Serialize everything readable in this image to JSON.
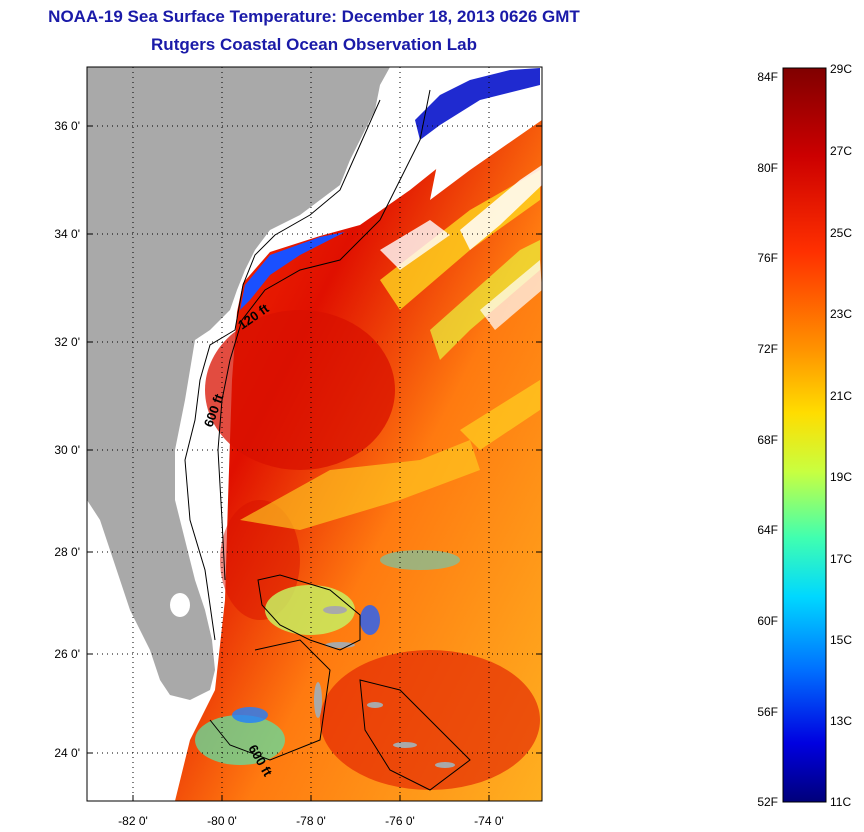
{
  "title": "NOAA-19 Sea Surface Temperature:  December 18, 2013 0626 GMT",
  "subtitle": "Rutgers Coastal Ocean Observation Lab",
  "map": {
    "lon_labels": [
      "-82 0'",
      "-80 0'",
      "-78 0'",
      "-76 0'",
      "-74 0'"
    ],
    "lat_labels": [
      "36 0'",
      "34 0'",
      "32 0'",
      "30 0'",
      "28 0'",
      "26 0'",
      "24 0'"
    ],
    "lon_range": [
      -83,
      -72.5
    ],
    "lat_range": [
      23,
      37
    ],
    "contours": [
      "120 ft",
      "600 ft",
      "600 ft"
    ],
    "colors": {
      "land": "#a9a9a9",
      "no_data": "#ffffff",
      "grid": "#000000"
    }
  },
  "colorbar": {
    "f_labels": [
      "84F",
      "80F",
      "76F",
      "72F",
      "68F",
      "64F",
      "60F",
      "56F",
      "52F"
    ],
    "c_labels": [
      "29C",
      "27C",
      "25C",
      "23C",
      "21C",
      "19C",
      "17C",
      "15C",
      "13C",
      "11C"
    ],
    "range_c": [
      11,
      29
    ],
    "colors": [
      "#800000",
      "#ff0000",
      "#ff8000",
      "#ffff00",
      "#80ff80",
      "#00ffff",
      "#0080ff",
      "#0000ff",
      "#000090"
    ]
  }
}
